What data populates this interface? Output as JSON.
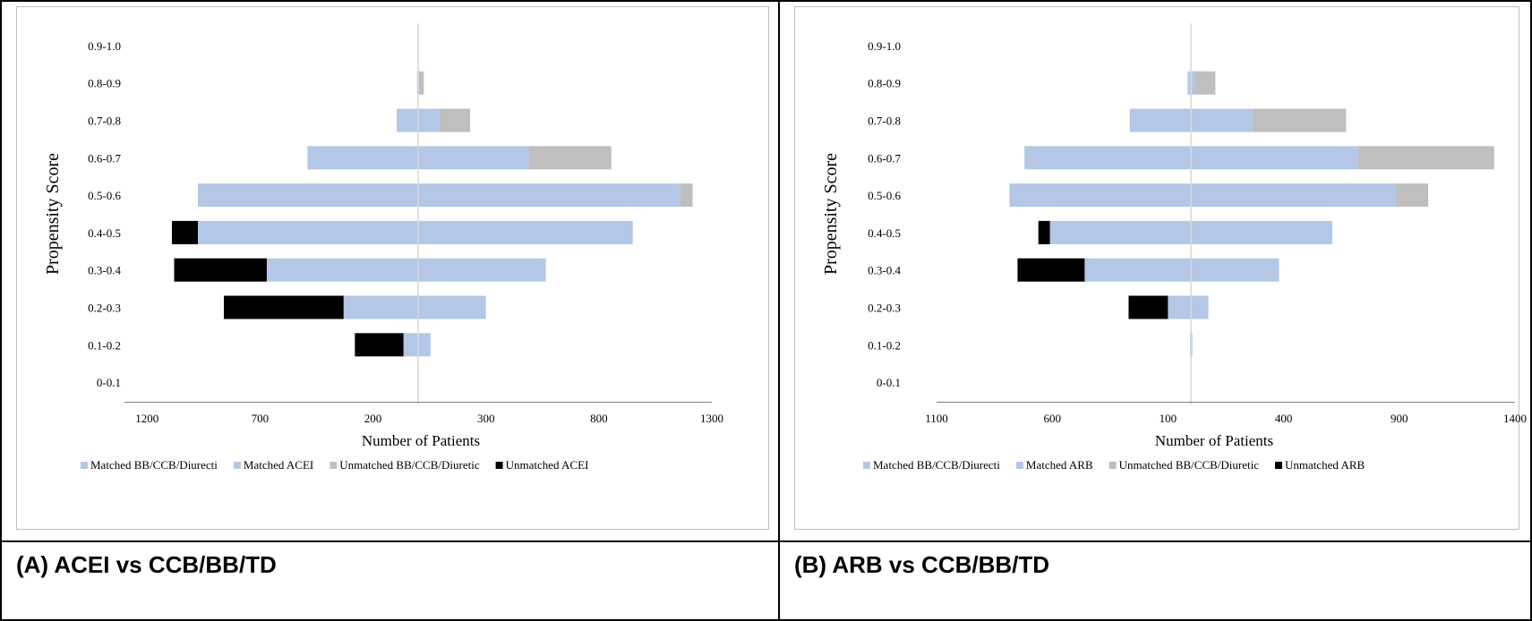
{
  "colors": {
    "matched_control": "#b4c7e7",
    "matched_treatment": "#b4c7e7",
    "unmatched_control": "#bfbfbf",
    "unmatched_treatment": "#000000",
    "axis": "#808080",
    "zero_line": "#d9d9d9"
  },
  "panels": [
    {
      "caption": "(A) ACEI vs CCB/BB/TD",
      "chart_data": {
        "type": "bar",
        "orientation": "horizontal",
        "layout": "back-to-back (pyramid), left side = matched/unmatched control, right side = treatment",
        "ylabel": "Propensity  Score",
        "xlabel": "Number of Patients",
        "categories": [
          "0.9-1.0",
          "0.8-0.9",
          "0.7-0.8",
          "0.6-0.7",
          "0.5-0.6",
          "0.4-0.5",
          "0.3-0.4",
          "0.2-0.3",
          "0.1-0.2",
          "0-0.1"
        ],
        "xlim": [
          -1300,
          1300
        ],
        "ticks": [
          -1200,
          -700,
          -200,
          300,
          800,
          1300
        ],
        "tick_labels": [
          "1200",
          "700",
          "200",
          "300",
          "800",
          "1300"
        ],
        "legend_position": "bottom",
        "series": [
          {
            "name": "Matched BB/CCB/Diurecti",
            "side": "left",
            "stack_order": 0,
            "color_key": "matched_control",
            "values": [
              0,
              5,
              95,
              490,
              975,
              975,
              670,
              330,
              65,
              0
            ]
          },
          {
            "name": "Matched ACEI",
            "side": "right",
            "stack_order": 0,
            "color_key": "matched_treatment",
            "values": [
              0,
              5,
              95,
              490,
              1160,
              950,
              565,
              300,
              55,
              0
            ]
          },
          {
            "name": "Unmatched BB/CCB/Diuretic",
            "side": "right",
            "stack_order": 1,
            "color_key": "unmatched_control",
            "values": [
              0,
              20,
              135,
              365,
              55,
              0,
              0,
              0,
              0,
              0
            ]
          },
          {
            "name": "Unmatched ACEI",
            "side": "left",
            "stack_order": 1,
            "color_key": "unmatched_treatment",
            "values": [
              0,
              0,
              0,
              0,
              0,
              115,
              410,
              530,
              215,
              0
            ]
          }
        ]
      }
    },
    {
      "caption": "(B) ARB vs CCB/BB/TD",
      "chart_data": {
        "type": "bar",
        "orientation": "horizontal",
        "layout": "back-to-back (pyramid), left side = matched/unmatched control, right side = treatment",
        "ylabel": "Propensity  Score",
        "xlabel": "Number of Patients",
        "categories": [
          "0.9-1.0",
          "0.8-0.9",
          "0.7-0.8",
          "0.6-0.7",
          "0.5-0.6",
          "0.4-0.5",
          "0.3-0.4",
          "0.2-0.3",
          "0.1-0.2",
          "0-0.1"
        ],
        "xlim": [
          -1100,
          1400
        ],
        "ticks": [
          -1100,
          -600,
          -100,
          400,
          900,
          1400
        ],
        "tick_labels": [
          "1100",
          "600",
          "100",
          "400",
          "900",
          "1400"
        ],
        "legend_position": "bottom",
        "series": [
          {
            "name": "Matched BB/CCB/Diurecti",
            "side": "left",
            "stack_order": 0,
            "color_key": "matched_control",
            "values": [
              0,
              15,
              265,
              720,
              785,
              610,
              460,
              100,
              5,
              0
            ]
          },
          {
            "name": "Matched ARB",
            "side": "right",
            "stack_order": 0,
            "color_key": "matched_treatment",
            "values": [
              0,
              15,
              265,
              720,
              885,
              610,
              380,
              75,
              5,
              0
            ]
          },
          {
            "name": "Unmatched BB/CCB/Diuretic",
            "side": "right",
            "stack_order": 1,
            "color_key": "unmatched_control",
            "values": [
              0,
              90,
              405,
              590,
              140,
              0,
              0,
              0,
              0,
              0
            ]
          },
          {
            "name": "Unmatched ARB",
            "side": "left",
            "stack_order": 1,
            "color_key": "unmatched_treatment",
            "values": [
              0,
              0,
              0,
              0,
              0,
              50,
              290,
              170,
              0,
              0
            ]
          }
        ]
      }
    }
  ]
}
